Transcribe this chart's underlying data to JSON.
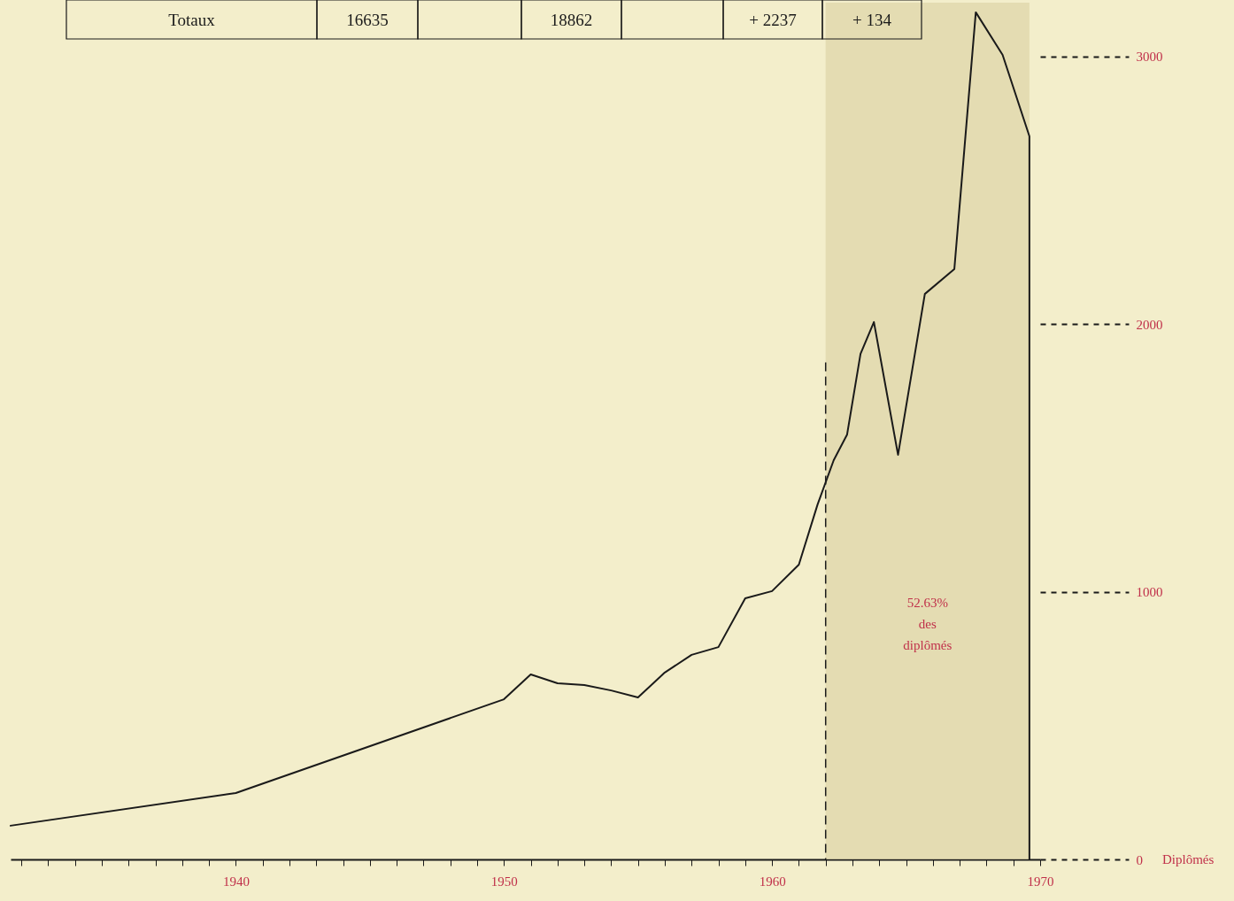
{
  "chart_data": {
    "type": "line",
    "ylabel": "Diplômés",
    "x": [
      1931.6,
      1940,
      1950,
      1951,
      1952,
      1953,
      1954,
      1955,
      1956,
      1957,
      1958,
      1959,
      1960,
      1961,
      1961.7,
      1962.3,
      1962.8,
      1963.3,
      1963.8,
      1964.7,
      1965.7,
      1966.8,
      1967.6,
      1968.6,
      1969.6,
      1969.6
    ],
    "series": [
      {
        "color": "#1a1a1a",
        "values": [
          126,
          248,
          598,
          691,
          658,
          651,
          631,
          605,
          698,
          764,
          793,
          975,
          1002,
          1101,
          1326,
          1491,
          1587,
          1888,
          2007,
          1511,
          2112,
          2205,
          3164,
          3005,
          2701,
          0
        ]
      }
    ],
    "xlim": [
      1931.6,
      1970
    ],
    "ylim": [
      0,
      3200
    ],
    "xticks": [
      {
        "value": 1932,
        "label": null
      },
      {
        "value": 1933,
        "label": null
      },
      {
        "value": 1934,
        "label": null
      },
      {
        "value": 1935,
        "label": null
      },
      {
        "value": 1936,
        "label": null
      },
      {
        "value": 1937,
        "label": null
      },
      {
        "value": 1938,
        "label": null
      },
      {
        "value": 1939,
        "label": null
      },
      1940,
      {
        "value": 1941,
        "label": null
      },
      {
        "value": 1942,
        "label": null
      },
      {
        "value": 1943,
        "label": null
      },
      {
        "value": 1944,
        "label": null
      },
      {
        "value": 1945,
        "label": null
      },
      {
        "value": 1946,
        "label": null
      },
      {
        "value": 1947,
        "label": null
      },
      {
        "value": 1948,
        "label": null
      },
      {
        "value": 1949,
        "label": null
      },
      1950,
      {
        "value": 1951,
        "label": null
      },
      {
        "value": 1952,
        "label": null
      },
      {
        "value": 1953,
        "label": null
      },
      {
        "value": 1954,
        "label": null
      },
      {
        "value": 1955,
        "label": null
      },
      {
        "value": 1956,
        "label": null
      },
      {
        "value": 1957,
        "label": null
      },
      {
        "value": 1958,
        "label": null
      },
      {
        "value": 1959,
        "label": null
      },
      1960,
      {
        "value": 1961,
        "label": null
      },
      {
        "value": 1962,
        "label": null
      },
      {
        "value": 1963,
        "label": null
      },
      {
        "value": 1964,
        "label": null
      },
      {
        "value": 1965,
        "label": null
      },
      {
        "value": 1966,
        "label": null
      },
      {
        "value": 1967,
        "label": null
      },
      {
        "value": 1968,
        "label": null
      },
      {
        "value": 1969,
        "label": null
      },
      1970
    ],
    "yticks": [
      0,
      1000,
      2000,
      3000
    ],
    "bands": [
      {
        "axis": "x",
        "from": 1962,
        "to": 1969.6,
        "label": "52.63% des diplômés",
        "color": "#ddd4a6"
      }
    ],
    "ref_lines": [
      {
        "axis": "x",
        "value": 1962,
        "line_style": "dashed",
        "color": "#1a1a1a"
      }
    ],
    "annotations": [
      "Totaux",
      "16635",
      "18862",
      "+ 2237",
      "+ 134"
    ],
    "grid": false,
    "marker": "none",
    "line_style": "solid"
  }
}
